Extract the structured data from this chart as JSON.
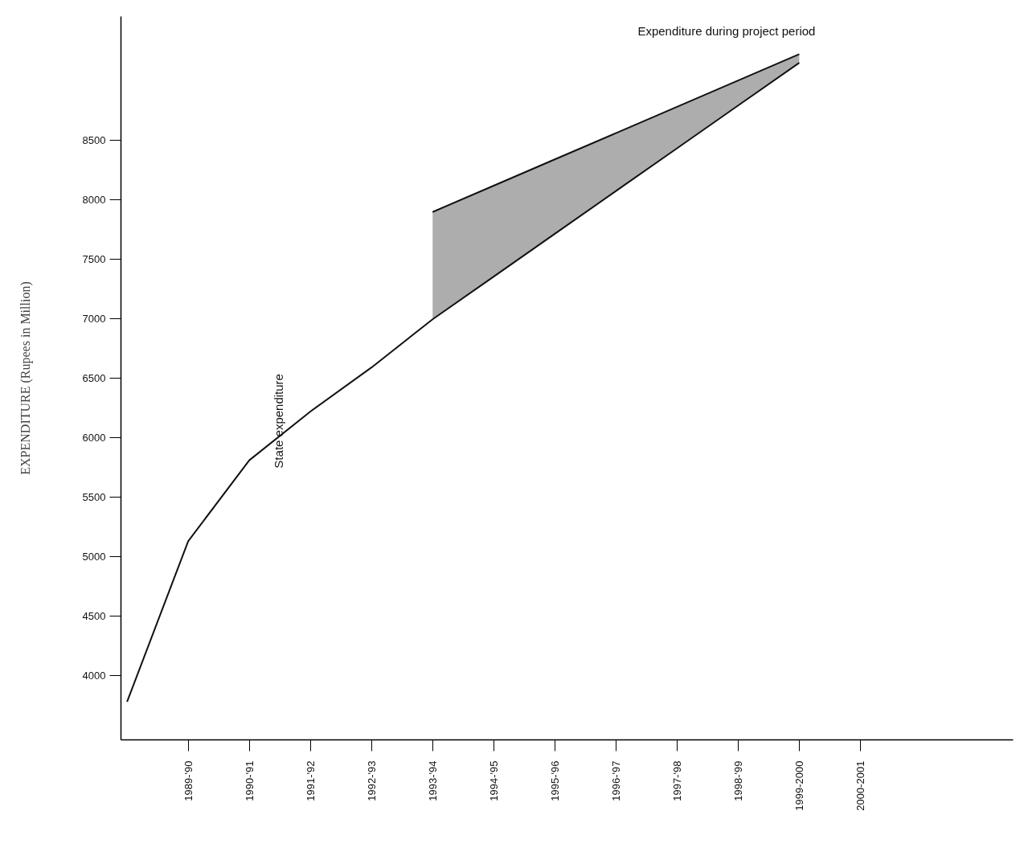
{
  "chart_data": {
    "type": "line",
    "ylabel": "EXPENDITURE (Rupees in Million)",
    "categories": [
      null,
      "1989-'90",
      "1990-'91",
      "1991-'92",
      "1992-'93",
      "1993-'94",
      "1994-'95",
      "1995-'96",
      "1996-'97",
      "1997-'98",
      "1998-'99",
      "1999-2000",
      "2000-2001",
      null,
      null
    ],
    "ylim": [
      3460,
      9540
    ],
    "yticks": [
      4000,
      4500,
      5000,
      5500,
      6000,
      6500,
      7000,
      7500,
      8000,
      8500
    ],
    "grid": false,
    "marker": "none",
    "line_style": "solid",
    "series": [
      {
        "name": "State expenditure",
        "color": "#111111",
        "values": [
          3780,
          5130,
          5810,
          6220,
          6590,
          6995,
          7354,
          7713,
          8073,
          8432,
          8792,
          9151,
          null,
          null,
          null
        ]
      },
      {
        "name": "Expenditure during project period",
        "color": "#111111",
        "values": [
          null,
          null,
          null,
          null,
          null,
          7897,
          8118,
          8339,
          8560,
          8781,
          9002,
          9223,
          null,
          null,
          null
        ],
        "lower": [
          null,
          null,
          null,
          null,
          null,
          6995,
          7354,
          7713,
          8073,
          8432,
          8792,
          9151,
          null,
          null,
          null
        ],
        "upper": [
          null,
          null,
          null,
          null,
          null,
          7897,
          8118,
          8339,
          8560,
          8781,
          9002,
          9223,
          null,
          null,
          null
        ]
      }
    ]
  }
}
